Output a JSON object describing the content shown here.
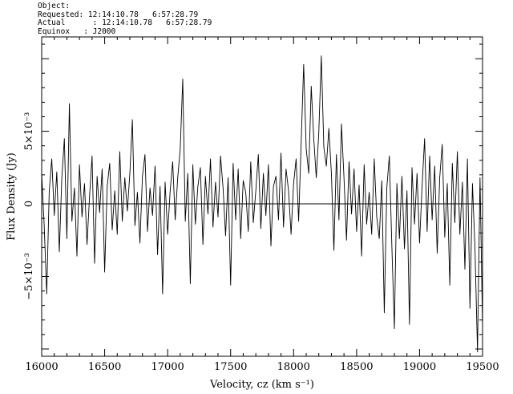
{
  "header": {
    "object": "Object:",
    "requested": "Requested: 12:14:10.78   6:57:28.79",
    "actual": "Actual      : 12:14:10.78   6:57:28.79",
    "equinox": "Equinox   : J2000"
  },
  "chart_data": {
    "type": "line",
    "xlabel": "Velocity, cz (km s⁻¹)",
    "ylabel": "Flux Density (Jy)",
    "xlim": [
      16000,
      19500
    ],
    "ylim": [
      -0.0105,
      0.0115
    ],
    "x_ticks": [
      16000,
      16500,
      17000,
      17500,
      18000,
      18500,
      19000,
      19500
    ],
    "x_tick_labels": [
      "16000",
      "16500",
      "17000",
      "17500",
      "18000",
      "18500",
      "19000",
      "19500"
    ],
    "y_ticks": [
      -0.005,
      0,
      0.005
    ],
    "y_tick_labels": [
      "−5×10⁻³",
      "0",
      "5×10⁻³"
    ],
    "zero_line": true,
    "grid": false,
    "series": [
      {
        "x": [
          16000,
          16020,
          16040,
          16060,
          16080,
          16100,
          16120,
          16140,
          16160,
          16180,
          16200,
          16220,
          16240,
          16260,
          16280,
          16300,
          16320,
          16340,
          16360,
          16380,
          16400,
          16420,
          16440,
          16460,
          16480,
          16500,
          16520,
          16540,
          16560,
          16580,
          16600,
          16620,
          16640,
          16660,
          16680,
          16700,
          16720,
          16740,
          16760,
          16780,
          16800,
          16820,
          16840,
          16860,
          16880,
          16900,
          16920,
          16940,
          16960,
          16980,
          17000,
          17020,
          17040,
          17060,
          17080,
          17100,
          17120,
          17140,
          17160,
          17180,
          17200,
          17220,
          17240,
          17260,
          17280,
          17300,
          17320,
          17340,
          17360,
          17380,
          17400,
          17420,
          17440,
          17460,
          17480,
          17500,
          17520,
          17540,
          17560,
          17580,
          17600,
          17620,
          17640,
          17660,
          17680,
          17700,
          17720,
          17740,
          17760,
          17780,
          17800,
          17820,
          17840,
          17860,
          17880,
          17900,
          17920,
          17940,
          17960,
          17980,
          18000,
          18020,
          18040,
          18060,
          18080,
          18100,
          18120,
          18140,
          18160,
          18180,
          18200,
          18220,
          18240,
          18260,
          18280,
          18300,
          18320,
          18340,
          18360,
          18380,
          18400,
          18420,
          18440,
          18460,
          18480,
          18500,
          18520,
          18540,
          18560,
          18580,
          18600,
          18620,
          18640,
          18660,
          18680,
          18700,
          18720,
          18740,
          18760,
          18780,
          18800,
          18820,
          18840,
          18860,
          18880,
          18900,
          18920,
          18940,
          18960,
          18980,
          19000,
          19020,
          19040,
          19060,
          19080,
          19100,
          19120,
          19140,
          19160,
          19180,
          19200,
          19220,
          19240,
          19260,
          19280,
          19300,
          19320,
          19340,
          19360,
          19380,
          19400,
          19420,
          19440,
          19460,
          19480,
          19500
        ],
        "values": [
          0.0021,
          -0.0015,
          -0.0062,
          0.0009,
          0.0031,
          -0.0008,
          0.0022,
          -0.0033,
          0.0018,
          0.0045,
          -0.0024,
          0.0069,
          -0.0012,
          0.0011,
          -0.0036,
          0.0027,
          -0.0009,
          0.0014,
          -0.0028,
          0.0005,
          0.0033,
          -0.0041,
          0.0019,
          -0.0006,
          0.0024,
          -0.0047,
          0.0012,
          0.0028,
          -0.0018,
          0.0009,
          -0.0021,
          0.0036,
          -0.0012,
          0.0018,
          -0.0005,
          0.0021,
          0.0058,
          -0.0015,
          0.0008,
          -0.0027,
          0.0019,
          0.0034,
          -0.0019,
          0.0011,
          -0.0008,
          0.0026,
          -0.0035,
          0.0012,
          -0.0062,
          0.0015,
          -0.0021,
          0.0009,
          0.0029,
          -0.0011,
          0.0018,
          0.0038,
          0.0086,
          -0.0012,
          0.0021,
          -0.0055,
          0.0027,
          -0.0014,
          0.0012,
          0.0025,
          -0.0028,
          0.0019,
          -0.0007,
          0.0031,
          -0.0016,
          0.0015,
          -0.0009,
          0.0033,
          0.0011,
          -0.0022,
          0.0018,
          -0.0056,
          0.0028,
          -0.0011,
          0.0024,
          -0.0024,
          0.0016,
          0.0008,
          -0.0019,
          0.0029,
          -0.0013,
          0.0009,
          0.0034,
          -0.0017,
          0.0021,
          -0.0008,
          0.0027,
          -0.0029,
          0.0012,
          0.0019,
          -0.0011,
          0.0035,
          -0.0016,
          0.0024,
          0.0009,
          -0.0021,
          0.0014,
          0.0031,
          -0.0012,
          0.0042,
          0.0096,
          0.0038,
          0.0021,
          0.0081,
          0.0045,
          0.0018,
          0.0049,
          0.0102,
          0.0039,
          0.0026,
          0.0052,
          0.0021,
          -0.0032,
          0.0034,
          -0.0011,
          0.0055,
          0.0018,
          -0.0025,
          0.0029,
          -0.0007,
          0.0024,
          -0.0019,
          0.0013,
          -0.0036,
          0.0027,
          -0.0014,
          0.0008,
          -0.0021,
          0.0031,
          -0.0009,
          -0.0024,
          0.0016,
          -0.0075,
          0.0011,
          0.0033,
          -0.0029,
          -0.0086,
          0.0014,
          -0.0024,
          0.0019,
          -0.0031,
          0.0009,
          -0.0083,
          0.0025,
          -0.0014,
          0.0021,
          -0.0027,
          0.0012,
          0.0045,
          -0.0019,
          0.0033,
          -0.0011,
          0.0026,
          -0.0034,
          0.0018,
          0.0041,
          -0.0023,
          0.0014,
          -0.0056,
          0.0028,
          -0.0013,
          0.0036,
          -0.0021,
          0.0015,
          -0.0045,
          0.0031,
          -0.0072,
          0.0014,
          -0.0031,
          -0.0102,
          0.0018,
          -0.0085
        ]
      }
    ]
  }
}
